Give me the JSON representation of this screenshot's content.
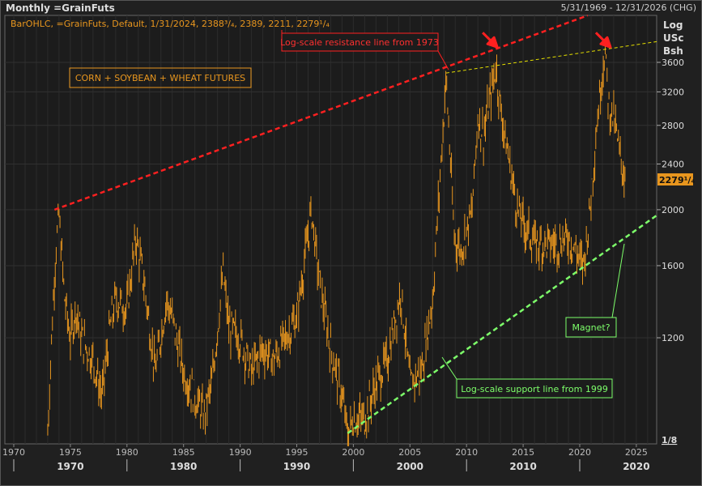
{
  "header": {
    "title": "Monthly =GrainFuts",
    "date_range": "5/31/1969 - 12/31/2026 (CHG)"
  },
  "legend_line": "BarOHLC, =GrainFuts, Default, 1/31/2024, 2388³/₄, 2389, 2211, 2279¹/₄",
  "axis_units": [
    "Log",
    "USc",
    "Bsh"
  ],
  "last_price_tag": "2279¹/₄",
  "scale_corner": "1/8",
  "colors": {
    "bars": "#e8961e",
    "resistance": "#ff2020",
    "support": "#7dff6a",
    "channel": "#e6e000",
    "background": "#202020"
  },
  "annotations": {
    "title_box": "CORN + SOYBEAN + WHEAT FUTURES",
    "resistance_label": "Log-scale resistance line from 1973",
    "support_label": "Log-scale support line from 1999",
    "magnet_label": "Magnet?"
  },
  "chart_data": {
    "type": "bar",
    "subtype": "ohlc",
    "y_scale": "log",
    "ylim": [
      780,
      4400
    ],
    "xlim": [
      1969.5,
      2026.8
    ],
    "grid": true,
    "y_ticks": [
      1200,
      1600,
      2000,
      2400,
      2800,
      3200,
      3600
    ],
    "x_ticks": [
      "1970",
      "1975",
      "1980",
      "1985",
      "1990",
      "1995",
      "2000",
      "2005",
      "2010",
      "2015",
      "2020",
      "2025"
    ],
    "decade_labels": [
      "1970",
      "1980",
      "1990",
      "2000",
      "2010",
      "2020"
    ],
    "close_series": [
      [
        1973.0,
        820
      ],
      [
        1973.3,
        1150
      ],
      [
        1973.7,
        1700
      ],
      [
        1974.0,
        1950
      ],
      [
        1974.5,
        1400
      ],
      [
        1975,
        1200
      ],
      [
        1975.5,
        1350
      ],
      [
        1976,
        1200
      ],
      [
        1977,
        1100
      ],
      [
        1977.8,
        950
      ],
      [
        1978.5,
        1250
      ],
      [
        1979,
        1400
      ],
      [
        1980,
        1350
      ],
      [
        1980.8,
        1800
      ],
      [
        1981.5,
        1500
      ],
      [
        1982.5,
        1050
      ],
      [
        1983.5,
        1400
      ],
      [
        1984,
        1300
      ],
      [
        1985,
        1050
      ],
      [
        1986,
        950
      ],
      [
        1986.8,
        880
      ],
      [
        1987.5,
        1000
      ],
      [
        1988.5,
        1550
      ],
      [
        1989,
        1250
      ],
      [
        1990,
        1200
      ],
      [
        1991,
        1050
      ],
      [
        1992,
        1150
      ],
      [
        1993,
        1100
      ],
      [
        1994,
        1200
      ],
      [
        1995,
        1300
      ],
      [
        1996.3,
        2000
      ],
      [
        1997,
        1500
      ],
      [
        1998,
        1150
      ],
      [
        1999,
        950
      ],
      [
        1999.5,
        820
      ],
      [
        2000,
        870
      ],
      [
        2001,
        870
      ],
      [
        2002,
        1000
      ],
      [
        2003,
        1100
      ],
      [
        2004.2,
        1450
      ],
      [
        2005,
        1000
      ],
      [
        2006,
        1050
      ],
      [
        2007,
        1400
      ],
      [
        2008.2,
        3400
      ],
      [
        2008.9,
        1800
      ],
      [
        2009.5,
        1700
      ],
      [
        2010.5,
        2000
      ],
      [
        2011,
        2900
      ],
      [
        2011.5,
        2700
      ],
      [
        2012.6,
        3550
      ],
      [
        2013,
        3000
      ],
      [
        2013.8,
        2400
      ],
      [
        2014.5,
        2000
      ],
      [
        2015,
        1900
      ],
      [
        2016,
        1750
      ],
      [
        2017,
        1750
      ],
      [
        2018,
        1750
      ],
      [
        2019,
        1800
      ],
      [
        2020.3,
        1600
      ],
      [
        2020.8,
        1900
      ],
      [
        2021.5,
        2800
      ],
      [
        2022.2,
        3800
      ],
      [
        2022.6,
        3000
      ],
      [
        2023,
        2900
      ],
      [
        2023.5,
        2500
      ],
      [
        2024.0,
        2279
      ]
    ],
    "trendlines": [
      {
        "label": "Log-scale resistance line from 1973",
        "from": [
          1973.6,
          2000
        ],
        "to": [
          2020.7,
          4340
        ],
        "color": "#ff2020"
      },
      {
        "label": "Log-scale support line from 1999",
        "from": [
          1999.5,
          820
        ],
        "to": [
          2026.8,
          1955
        ],
        "color": "#7dff6a"
      },
      {
        "from": [
          2008.2,
          3450
        ],
        "to": [
          2026.8,
          3910
        ],
        "color": "#e6e000"
      }
    ],
    "arrows": [
      [
        2012.0,
        3950
      ],
      [
        2022.0,
        3950
      ]
    ]
  }
}
